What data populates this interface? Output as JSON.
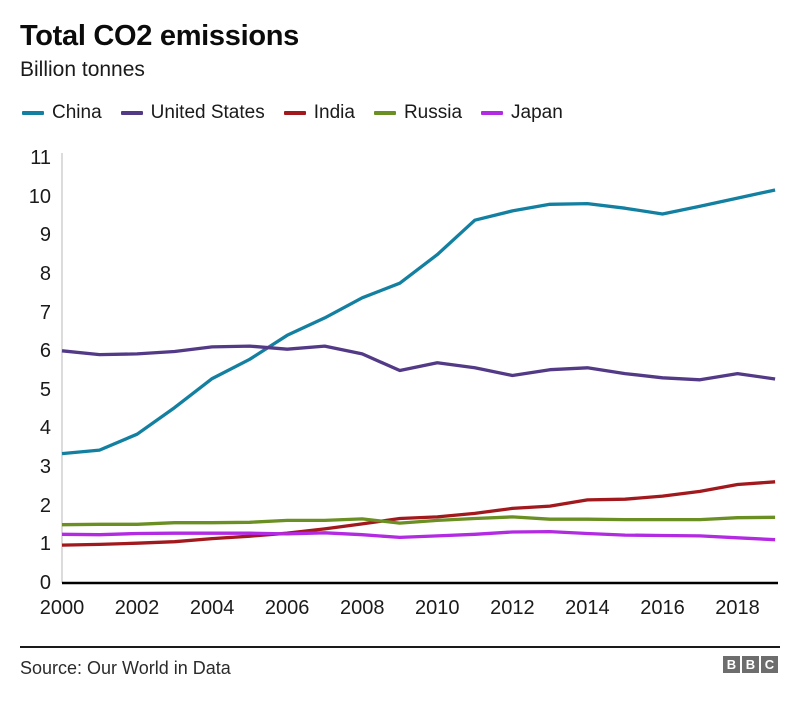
{
  "header": {
    "title": "Total CO2 emissions",
    "subtitle": "Billion tonnes"
  },
  "footer": {
    "source": "Source: Our World in Data",
    "logo_letters": [
      "B",
      "B",
      "C"
    ]
  },
  "colors": {
    "axis_x": "#000000",
    "axis_y": "#cccccc",
    "text": "#1a1a1a",
    "logo_gray": "#6d6d6d"
  },
  "chart_data": {
    "type": "line",
    "title": "Total CO2 emissions",
    "ylabel": "Billion tonnes",
    "xlabel": "",
    "grid": false,
    "legend_position": "top",
    "xlim": [
      2000,
      2019
    ],
    "ylim": [
      0,
      11
    ],
    "x": [
      2000,
      2001,
      2002,
      2003,
      2004,
      2005,
      2006,
      2007,
      2008,
      2009,
      2010,
      2011,
      2012,
      2013,
      2014,
      2015,
      2016,
      2017,
      2018,
      2019
    ],
    "x_tick_labels": [
      "2000",
      "2002",
      "2004",
      "2006",
      "2008",
      "2010",
      "2012",
      "2014",
      "2016",
      "2018"
    ],
    "y_tick_labels": [
      "0",
      "1",
      "2",
      "3",
      "4",
      "5",
      "6",
      "7",
      "8",
      "9",
      "10",
      "11"
    ],
    "series": [
      {
        "name": "China",
        "color": "#1380A1",
        "values": [
          3.35,
          3.44,
          3.85,
          4.54,
          5.29,
          5.79,
          6.41,
          6.86,
          7.38,
          7.76,
          8.5,
          9.39,
          9.63,
          9.8,
          9.82,
          9.7,
          9.55,
          9.75,
          9.96,
          10.17
        ]
      },
      {
        "name": "United States",
        "color": "#533A87",
        "values": [
          6.01,
          5.91,
          5.93,
          5.99,
          6.11,
          6.13,
          6.05,
          6.13,
          5.93,
          5.5,
          5.7,
          5.57,
          5.37,
          5.52,
          5.57,
          5.42,
          5.31,
          5.26,
          5.42,
          5.28
        ]
      },
      {
        "name": "India",
        "color": "#A2191D",
        "values": [
          0.98,
          1.0,
          1.03,
          1.07,
          1.15,
          1.21,
          1.29,
          1.4,
          1.53,
          1.67,
          1.71,
          1.8,
          1.93,
          1.99,
          2.15,
          2.17,
          2.25,
          2.37,
          2.55,
          2.62
        ]
      },
      {
        "name": "Russia",
        "color": "#6A8F23",
        "values": [
          1.51,
          1.52,
          1.52,
          1.56,
          1.56,
          1.57,
          1.62,
          1.62,
          1.66,
          1.55,
          1.62,
          1.67,
          1.71,
          1.65,
          1.65,
          1.64,
          1.64,
          1.64,
          1.69,
          1.7
        ]
      },
      {
        "name": "Japan",
        "color": "#B22AE2",
        "values": [
          1.26,
          1.25,
          1.28,
          1.29,
          1.29,
          1.29,
          1.27,
          1.3,
          1.25,
          1.18,
          1.22,
          1.26,
          1.32,
          1.33,
          1.28,
          1.24,
          1.23,
          1.22,
          1.17,
          1.12
        ]
      }
    ]
  }
}
